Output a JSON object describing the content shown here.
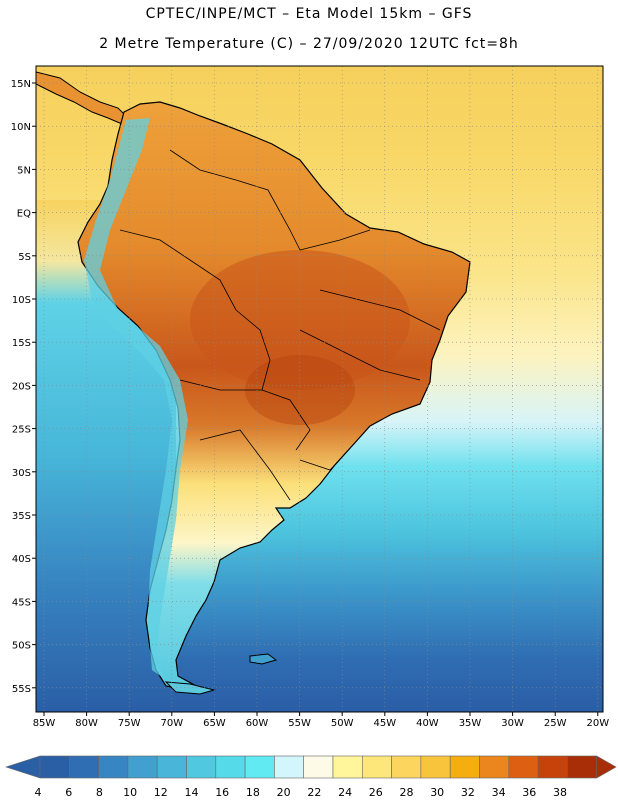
{
  "header": {
    "line1": "CPTEC/INPE/MCT –  Eta Model 15km – GFS",
    "line2": "2 Metre Temperature (C) – 27/09/2020 12UTC fct=8h"
  },
  "axes": {
    "lat_labels": [
      "15N",
      "10N",
      "5N",
      "EQ",
      "5S",
      "10S",
      "15S",
      "20S",
      "25S",
      "30S",
      "35S",
      "40S",
      "45S",
      "50S",
      "55S"
    ],
    "lon_labels": [
      "85W",
      "80W",
      "75W",
      "70W",
      "65W",
      "60W",
      "55W",
      "50W",
      "45W",
      "40W",
      "35W",
      "30W",
      "25W",
      "20W"
    ]
  },
  "colorbar": {
    "values": [
      "4",
      "6",
      "8",
      "10",
      "12",
      "14",
      "16",
      "18",
      "20",
      "22",
      "24",
      "26",
      "28",
      "30",
      "32",
      "34",
      "36",
      "38"
    ],
    "colors": [
      "#2a5fa6",
      "#2f6eb3",
      "#3785c2",
      "#41a0cf",
      "#49b5d8",
      "#4fc8e0",
      "#55dae9",
      "#62eaf3",
      "#d2f6fb",
      "#fdfae8",
      "#fff59a",
      "#fde67a",
      "#fbd55d",
      "#f8c43c",
      "#f5ad10",
      "#ea861d",
      "#dd6012",
      "#c6420a",
      "#a82e07"
    ],
    "under_color": "#2a5fa6",
    "over_color": "#a82e07"
  }
}
